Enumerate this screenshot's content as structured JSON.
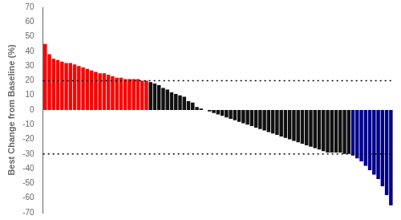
{
  "chart_data": {
    "type": "bar",
    "values": [
      45,
      38,
      35,
      34,
      33,
      32,
      32,
      31,
      30,
      29,
      28,
      27,
      26,
      25,
      25,
      24,
      23,
      22,
      22,
      21,
      21,
      21,
      21,
      20,
      20,
      19,
      18,
      17,
      15,
      14,
      12,
      11,
      10,
      9,
      6,
      5,
      2,
      1,
      0,
      -1,
      -2,
      -3,
      -4,
      -5,
      -6,
      -7,
      -8,
      -9,
      -10,
      -11,
      -12,
      -13,
      -14,
      -15,
      -16,
      -17,
      -18,
      -19,
      -20,
      -21,
      -22,
      -23,
      -24,
      -25,
      -26,
      -27,
      -28,
      -29,
      -29,
      -29,
      -29,
      -30,
      -30,
      -31,
      -33,
      -35,
      -38,
      -41,
      -44,
      -47,
      -52,
      -58,
      -65
    ],
    "colors": [
      "#ff0000",
      "#ff0000",
      "#ff0000",
      "#ff0000",
      "#ff0000",
      "#ff0000",
      "#ff0000",
      "#ff0000",
      "#ff0000",
      "#ff0000",
      "#ff0000",
      "#ff0000",
      "#ff0000",
      "#ff0000",
      "#ff0000",
      "#ff0000",
      "#ff0000",
      "#ff0000",
      "#ff0000",
      "#ff0000",
      "#ff0000",
      "#ff0000",
      "#ff0000",
      "#ff0000",
      "#ff0000",
      "#111111",
      "#111111",
      "#111111",
      "#111111",
      "#111111",
      "#111111",
      "#111111",
      "#111111",
      "#111111",
      "#111111",
      "#111111",
      "#111111",
      "#111111",
      "#111111",
      "#111111",
      "#111111",
      "#111111",
      "#111111",
      "#111111",
      "#111111",
      "#111111",
      "#111111",
      "#111111",
      "#111111",
      "#111111",
      "#111111",
      "#111111",
      "#111111",
      "#111111",
      "#111111",
      "#111111",
      "#111111",
      "#111111",
      "#111111",
      "#111111",
      "#111111",
      "#111111",
      "#111111",
      "#111111",
      "#111111",
      "#111111",
      "#111111",
      "#111111",
      "#111111",
      "#111111",
      "#111111",
      "#111111",
      "#111111",
      "#00008b",
      "#00008b",
      "#00008b",
      "#00008b",
      "#00008b",
      "#00008b",
      "#00008b",
      "#00008b",
      "#00008b",
      "#00008b"
    ],
    "hlines": [
      20,
      -30
    ],
    "ylabel": "Best Change from Baseline (%)",
    "ylim": [
      -70,
      70
    ],
    "yticks": [
      -70,
      -60,
      -50,
      -40,
      -30,
      -20,
      -10,
      0,
      10,
      20,
      30,
      40,
      50,
      60,
      70
    ],
    "grid": false,
    "tick_labels": "y"
  }
}
